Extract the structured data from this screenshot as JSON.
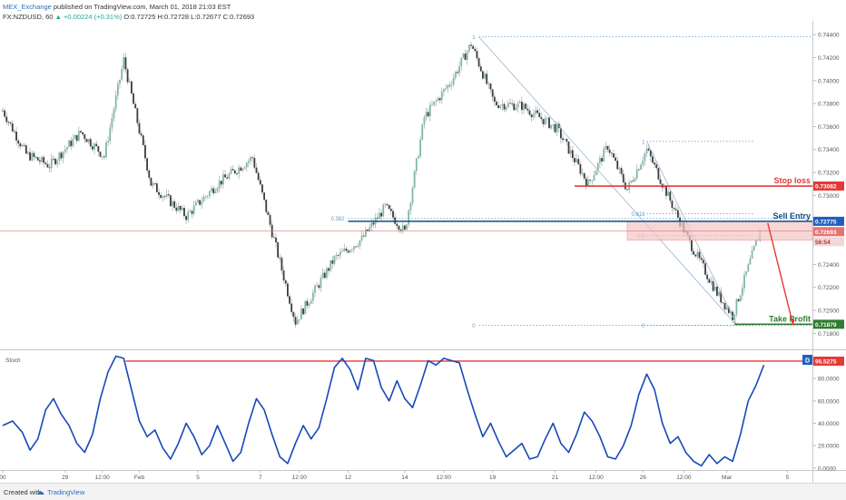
{
  "header": {
    "publisher": "MEX_Exchange",
    "published": "published on TradingView.com, March 01, 2018 21:03 EST",
    "symbol": "FX:NZDUSD, 60",
    "change": "▲ +0.00224 (+0.31%)",
    "ohlc": "O:0.72725 H:0.72728 L:0.72677 C:0.72693"
  },
  "footer": {
    "created_with": "Created with",
    "brand": "TradingView"
  },
  "colors": {
    "up": "#26a69a",
    "down": "#ef5350",
    "candle": "#444444",
    "stoch": "#1848b8",
    "stop": "#e53935",
    "entry": "#0f4c81",
    "profit": "#2e7d32",
    "fib": "#5b9bd5"
  },
  "chart_data": [
    {
      "type": "candlestick",
      "title": "FX:NZDUSD, 60",
      "ylim": [
        0.717,
        0.7448
      ],
      "yticks": [
        "0.74400",
        "0.74200",
        "0.74000",
        "0.73800",
        "0.73600",
        "0.73400",
        "0.73200",
        "0.73000",
        "0.72400",
        "0.72200",
        "0.72000",
        "0.71800"
      ],
      "xticks": [
        {
          "label": "00",
          "i": 0
        },
        {
          "label": "29",
          "i": 32
        },
        {
          "label": "12:00",
          "i": 51
        },
        {
          "label": "Feb",
          "i": 70
        },
        {
          "label": "5",
          "i": 100
        },
        {
          "label": "7",
          "i": 132
        },
        {
          "label": "12:00",
          "i": 152
        },
        {
          "label": "12",
          "i": 177
        },
        {
          "label": "14",
          "i": 206
        },
        {
          "label": "12:00",
          "i": 226
        },
        {
          "label": "19",
          "i": 251
        },
        {
          "label": "21",
          "i": 283
        },
        {
          "label": "12:00",
          "i": 304
        },
        {
          "label": "26",
          "i": 328
        },
        {
          "label": "12:00",
          "i": 349
        },
        {
          "label": "Mar",
          "i": 371
        },
        {
          "label": "5",
          "i": 402
        }
      ],
      "path": [
        [
          0,
          0.7374
        ],
        [
          12,
          0.7336
        ],
        [
          24,
          0.7326
        ],
        [
          40,
          0.7355
        ],
        [
          52,
          0.7334
        ],
        [
          62,
          0.7418
        ],
        [
          76,
          0.731
        ],
        [
          94,
          0.7282
        ],
        [
          110,
          0.731
        ],
        [
          128,
          0.7333
        ],
        [
          150,
          0.719
        ],
        [
          170,
          0.7245
        ],
        [
          184,
          0.7262
        ],
        [
          196,
          0.729
        ],
        [
          206,
          0.7268
        ],
        [
          216,
          0.7368
        ],
        [
          230,
          0.74
        ],
        [
          240,
          0.7432
        ],
        [
          252,
          0.738
        ],
        [
          266,
          0.7378
        ],
        [
          284,
          0.7358
        ],
        [
          300,
          0.731
        ],
        [
          310,
          0.7343
        ],
        [
          320,
          0.7305
        ],
        [
          330,
          0.734
        ],
        [
          340,
          0.7303
        ],
        [
          352,
          0.7259
        ],
        [
          366,
          0.7215
        ],
        [
          374,
          0.7195
        ],
        [
          388,
          0.7269
        ]
      ],
      "levels": {
        "stop_loss": {
          "label": "Stop loss",
          "value": 0.73082,
          "tag": "0.73082"
        },
        "sell_entry": {
          "label": "Sell Entry",
          "value": 0.72775,
          "tag": "0.72775"
        },
        "take_profit": {
          "label": "Take Profit",
          "value": 0.71879,
          "tag": "0.71879"
        }
      },
      "current": {
        "value": 0.72693,
        "tag": "0.72693",
        "countdown": "56:54"
      },
      "fib_levels": [
        {
          "label": "1",
          "value": 0.7438
        },
        {
          "label": "0.382",
          "value": 0.728
        },
        {
          "label": "0",
          "value": 0.7187
        }
      ],
      "fib_local": [
        {
          "label": "1",
          "value": 0.7347
        },
        {
          "label": "0.618",
          "value": 0.7284
        },
        {
          "label": "0.5",
          "value": 0.7265
        },
        {
          "label": "0",
          "value": 0.7187
        }
      ]
    },
    {
      "type": "line",
      "title": "Stoch",
      "ylim": [
        -1,
        102
      ],
      "yticks": [
        "80.0000",
        "60.0000",
        "40.0000",
        "20.0000",
        "0.0000"
      ],
      "level": {
        "value": 95.5275,
        "tag": "95.5275"
      },
      "legend_badge": "D",
      "series": [
        {
          "values": [
            [
              0,
              38
            ],
            [
              5,
              42
            ],
            [
              10,
              32
            ],
            [
              14,
              16
            ],
            [
              18,
              26
            ],
            [
              22,
              52
            ],
            [
              26,
              62
            ],
            [
              30,
              48
            ],
            [
              34,
              38
            ],
            [
              38,
              22
            ],
            [
              42,
              14
            ],
            [
              46,
              30
            ],
            [
              50,
              62
            ],
            [
              54,
              86
            ],
            [
              58,
              100
            ],
            [
              62,
              98
            ],
            [
              66,
              70
            ],
            [
              70,
              42
            ],
            [
              74,
              28
            ],
            [
              78,
              34
            ],
            [
              82,
              18
            ],
            [
              86,
              8
            ],
            [
              90,
              22
            ],
            [
              94,
              40
            ],
            [
              98,
              28
            ],
            [
              102,
              12
            ],
            [
              106,
              20
            ],
            [
              110,
              38
            ],
            [
              114,
              22
            ],
            [
              118,
              6
            ],
            [
              122,
              14
            ],
            [
              126,
              40
            ],
            [
              130,
              62
            ],
            [
              134,
              52
            ],
            [
              138,
              30
            ],
            [
              142,
              10
            ],
            [
              146,
              4
            ],
            [
              150,
              22
            ],
            [
              154,
              38
            ],
            [
              158,
              26
            ],
            [
              162,
              36
            ],
            [
              166,
              62
            ],
            [
              170,
              90
            ],
            [
              174,
              98
            ],
            [
              178,
              88
            ],
            [
              182,
              70
            ],
            [
              186,
              98
            ],
            [
              190,
              96
            ],
            [
              194,
              72
            ],
            [
              198,
              60
            ],
            [
              202,
              78
            ],
            [
              206,
              62
            ],
            [
              210,
              54
            ],
            [
              214,
              74
            ],
            [
              218,
              96
            ],
            [
              222,
              92
            ],
            [
              226,
              98
            ],
            [
              230,
              96
            ],
            [
              234,
              94
            ],
            [
              238,
              70
            ],
            [
              242,
              48
            ],
            [
              246,
              28
            ],
            [
              250,
              40
            ],
            [
              254,
              24
            ],
            [
              258,
              10
            ],
            [
              262,
              16
            ],
            [
              266,
              22
            ],
            [
              270,
              8
            ],
            [
              274,
              10
            ],
            [
              278,
              26
            ],
            [
              282,
              40
            ],
            [
              286,
              22
            ],
            [
              290,
              14
            ],
            [
              294,
              30
            ],
            [
              298,
              50
            ],
            [
              302,
              42
            ],
            [
              306,
              28
            ],
            [
              310,
              10
            ],
            [
              314,
              8
            ],
            [
              318,
              20
            ],
            [
              322,
              38
            ],
            [
              326,
              66
            ],
            [
              330,
              84
            ],
            [
              334,
              70
            ],
            [
              338,
              40
            ],
            [
              342,
              22
            ],
            [
              346,
              28
            ],
            [
              350,
              14
            ],
            [
              354,
              6
            ],
            [
              358,
              2
            ],
            [
              362,
              12
            ],
            [
              366,
              4
            ],
            [
              370,
              10
            ],
            [
              374,
              6
            ],
            [
              378,
              30
            ],
            [
              382,
              60
            ],
            [
              386,
              74
            ],
            [
              390,
              92
            ]
          ]
        }
      ]
    }
  ]
}
